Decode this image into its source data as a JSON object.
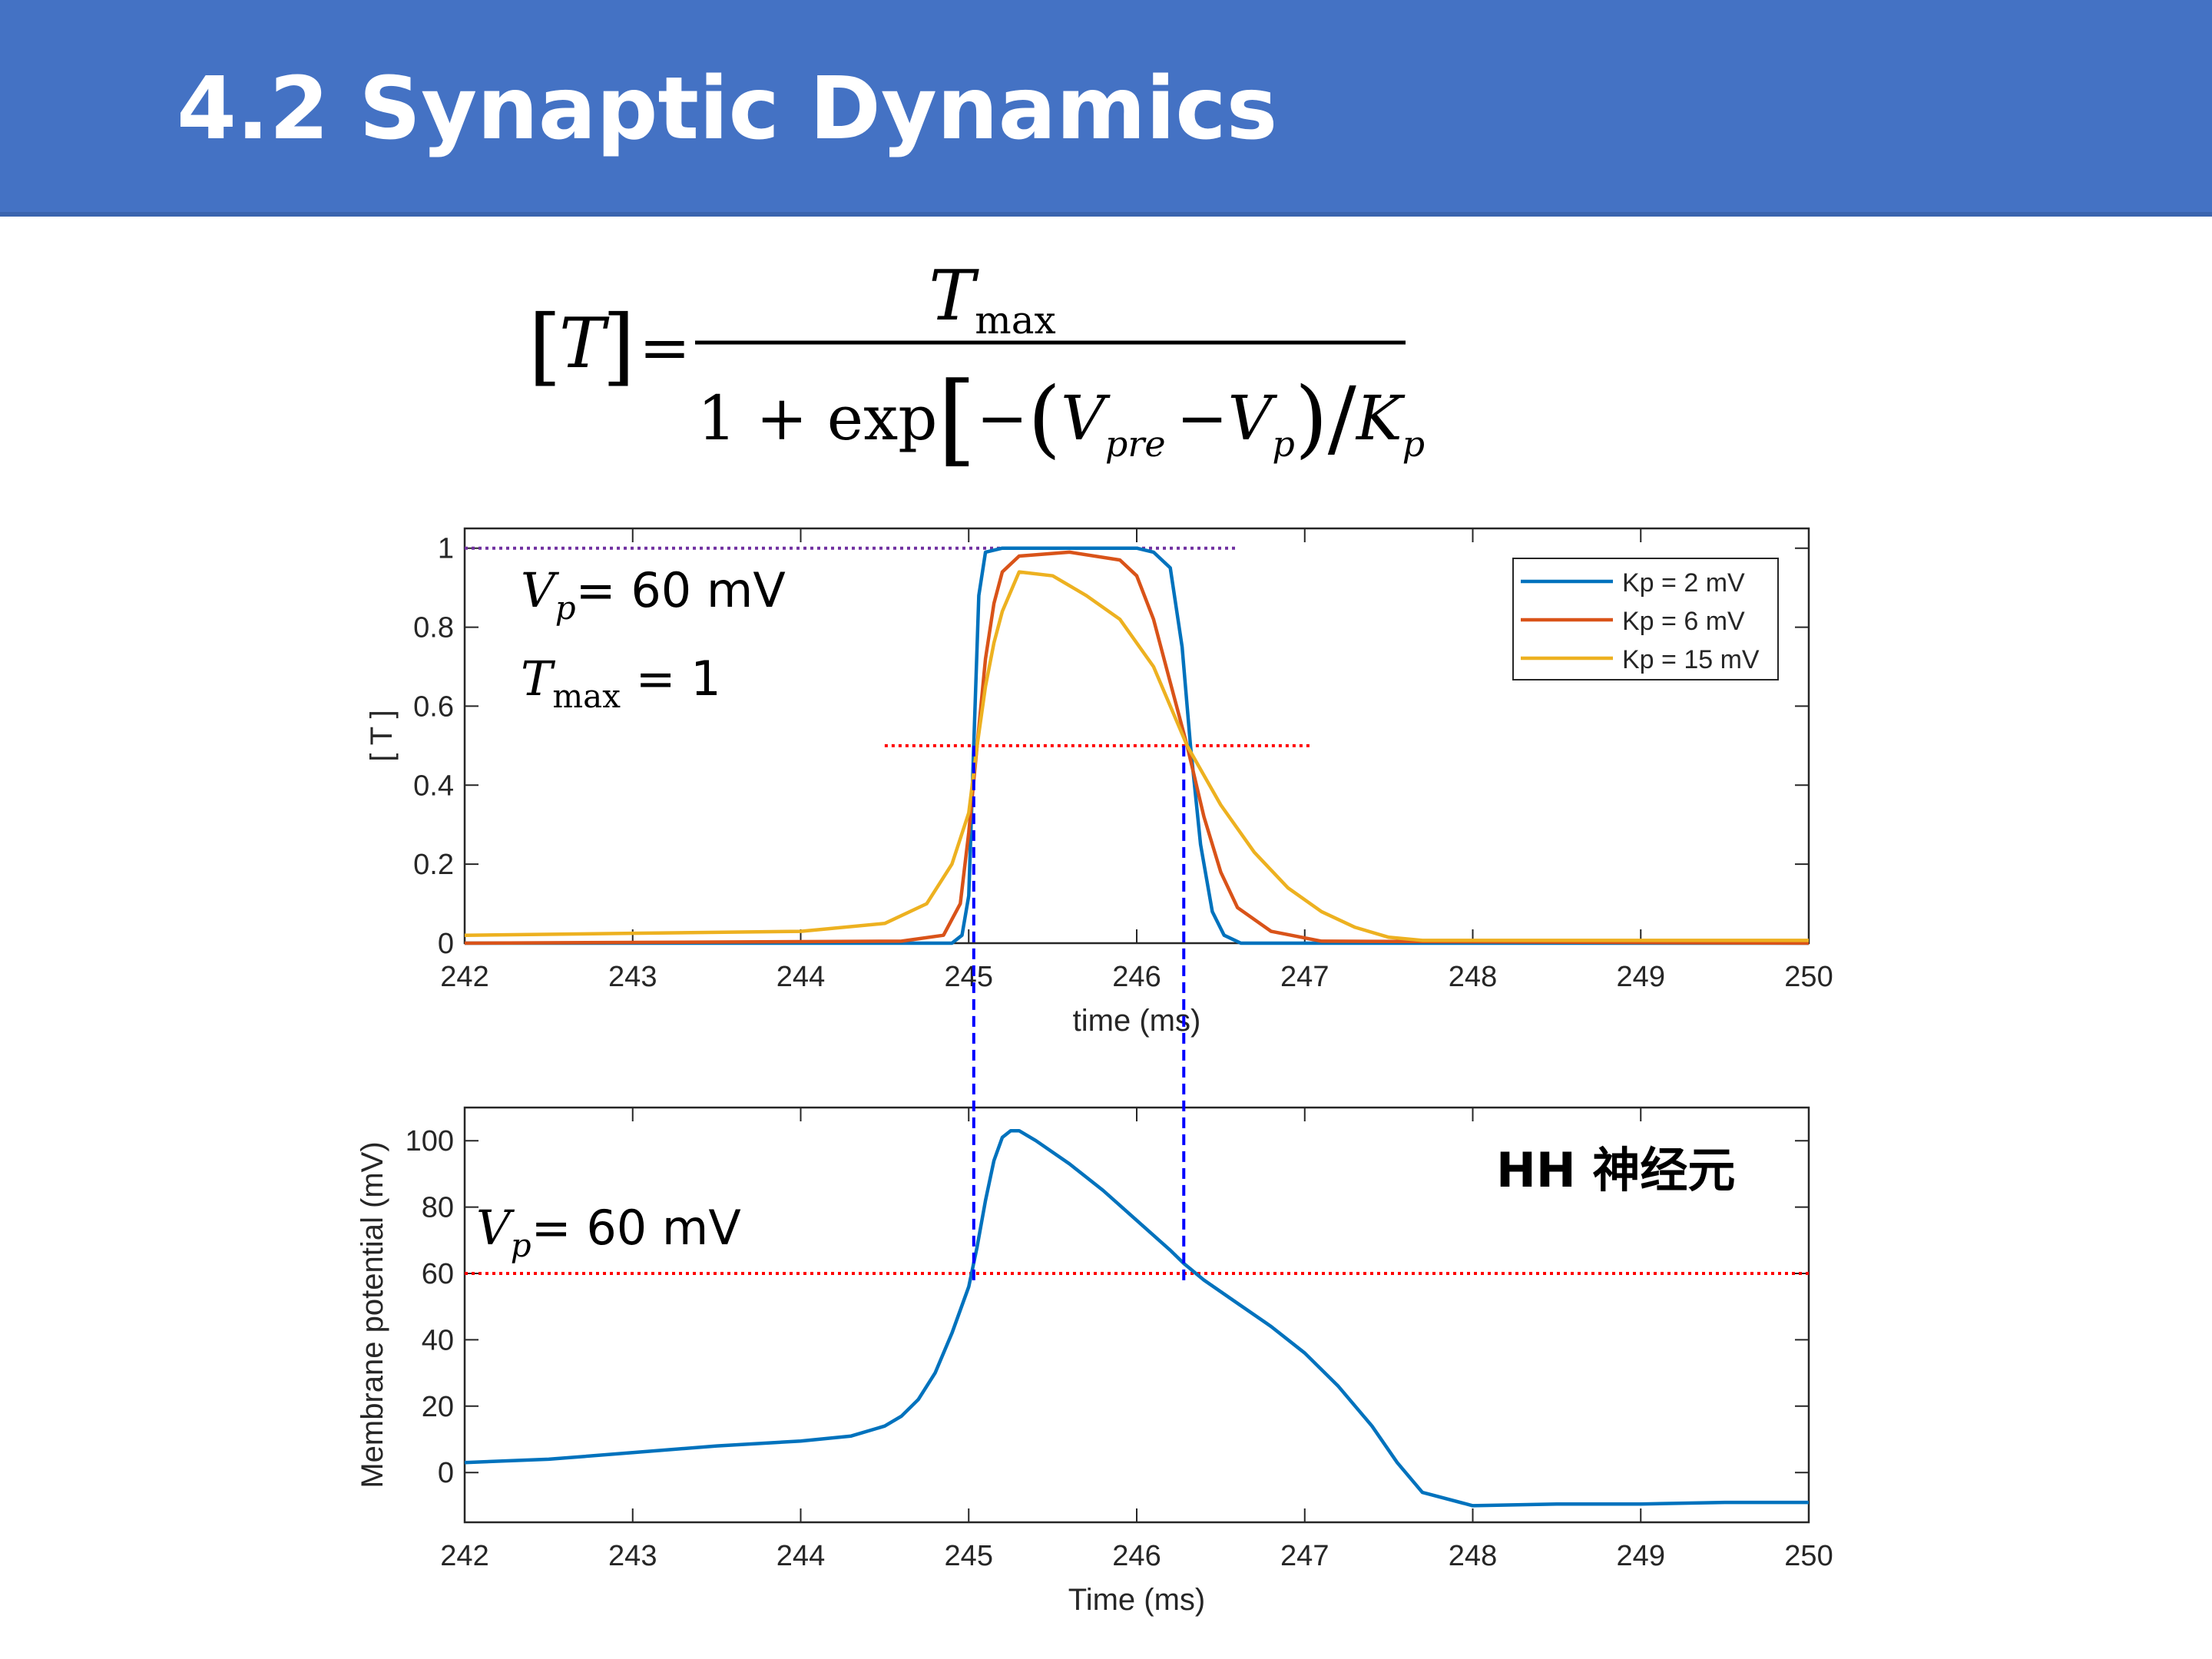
{
  "slide": {
    "title": "4.2 Synaptic Dynamics"
  },
  "formula": {
    "lhs": "T",
    "numerator_symbol": "T",
    "numerator_sub": "max",
    "denominator_lead": "1 + exp",
    "minus": "−",
    "v_pre_symbol": "V",
    "v_pre_sub": "pre",
    "v_p_symbol": "V",
    "v_p_sub": "p",
    "slash": "/",
    "k_symbol": "K",
    "k_sub": "p"
  },
  "chart_data": [
    {
      "type": "line",
      "xlabel": "time (ms)",
      "ylabel": "[ T ]",
      "xlim": [
        242,
        250
      ],
      "ylim": [
        0,
        1.05
      ],
      "xticks": [
        "242",
        "243",
        "244",
        "245",
        "246",
        "247",
        "248",
        "249",
        "250"
      ],
      "yticks": [
        "0",
        "0.2",
        "0.4",
        "0.6",
        "0.8",
        "1"
      ],
      "legend": {
        "placement": "top-right"
      },
      "annotations": [
        {
          "symbol": "V",
          "sub": "p",
          "text": "= 60 mV"
        },
        {
          "symbol": "T",
          "sub": "max",
          "text": " = 1"
        }
      ],
      "reference_lines": [
        {
          "orientation": "horizontal",
          "y": 1.0,
          "x_range": [
            242,
            246.6
          ],
          "color": "#7030a0"
        },
        {
          "orientation": "horizontal",
          "y": 0.5,
          "x_range": [
            244.5,
            247.05
          ],
          "color": "#ff0000"
        }
      ],
      "series": [
        {
          "name": "Kp = 2 mV",
          "color": "#0072bd",
          "x": [
            242,
            244.9,
            244.96,
            245.0,
            245.03,
            245.06,
            245.1,
            245.2,
            246.0,
            246.1,
            246.2,
            246.27,
            246.32,
            246.38,
            246.45,
            246.52,
            246.62,
            250
          ],
          "y": [
            0,
            0,
            0.02,
            0.12,
            0.5,
            0.88,
            0.99,
            1.0,
            1.0,
            0.99,
            0.95,
            0.75,
            0.5,
            0.25,
            0.08,
            0.02,
            0,
            0
          ]
        },
        {
          "name": "Kp = 6 mV",
          "color": "#d95319",
          "x": [
            242,
            244.6,
            244.85,
            244.95,
            245.0,
            245.05,
            245.1,
            245.15,
            245.2,
            245.3,
            245.6,
            245.9,
            246.0,
            246.1,
            246.2,
            246.3,
            246.4,
            246.5,
            246.6,
            246.8,
            247.1,
            250
          ],
          "y": [
            0,
            0.005,
            0.02,
            0.1,
            0.28,
            0.5,
            0.72,
            0.86,
            0.94,
            0.98,
            0.99,
            0.97,
            0.93,
            0.82,
            0.66,
            0.5,
            0.32,
            0.18,
            0.09,
            0.03,
            0.005,
            0
          ]
        },
        {
          "name": "Kp = 15 mV",
          "color": "#edb120",
          "x": [
            242,
            243,
            244,
            244.5,
            244.75,
            244.9,
            245.0,
            245.05,
            245.1,
            245.15,
            245.2,
            245.3,
            245.5,
            245.7,
            245.9,
            246.1,
            246.3,
            246.5,
            246.7,
            246.9,
            247.1,
            247.3,
            247.5,
            247.7,
            248,
            250
          ],
          "y": [
            0.02,
            0.025,
            0.03,
            0.05,
            0.1,
            0.2,
            0.33,
            0.5,
            0.65,
            0.76,
            0.84,
            0.94,
            0.93,
            0.88,
            0.82,
            0.7,
            0.5,
            0.35,
            0.23,
            0.14,
            0.08,
            0.04,
            0.015,
            0.007,
            0.007,
            0.007
          ]
        }
      ]
    },
    {
      "type": "line",
      "xlabel": "Time (ms)",
      "ylabel": "Membrane potential (mV)",
      "xlim": [
        242,
        250
      ],
      "ylim": [
        -15,
        110
      ],
      "xticks": [
        "242",
        "243",
        "244",
        "245",
        "246",
        "247",
        "248",
        "249",
        "250"
      ],
      "yticks": [
        "0",
        "20",
        "40",
        "60",
        "80",
        "100"
      ],
      "annotations": [
        {
          "symbol": "V",
          "sub": "p",
          "text": "= 60 mV"
        },
        {
          "text": "HH 神经元"
        }
      ],
      "reference_lines": [
        {
          "orientation": "horizontal",
          "y": 60,
          "x_range": [
            242,
            250
          ],
          "color": "#ff0000"
        },
        {
          "orientation": "vertical",
          "x": 245.03,
          "span": "between-charts",
          "color": "#0000ff"
        },
        {
          "orientation": "vertical",
          "x": 246.28,
          "span": "between-charts",
          "color": "#0000ff"
        }
      ],
      "series": [
        {
          "color": "#0072bd",
          "x": [
            242,
            242.5,
            243,
            243.5,
            244,
            244.3,
            244.5,
            244.6,
            244.7,
            244.8,
            244.9,
            245.0,
            245.05,
            245.1,
            245.15,
            245.2,
            245.25,
            245.3,
            245.4,
            245.6,
            245.8,
            246.0,
            246.2,
            246.28,
            246.4,
            246.6,
            246.8,
            247.0,
            247.2,
            247.4,
            247.55,
            247.7,
            248,
            248.5,
            249,
            249.5,
            250
          ],
          "y": [
            3,
            4,
            6,
            8,
            9.5,
            11,
            14,
            17,
            22,
            30,
            42,
            56,
            68,
            82,
            94,
            101,
            103,
            103,
            100,
            93,
            85,
            76,
            67,
            63,
            58,
            51,
            44,
            36,
            26,
            14,
            3,
            -6,
            -10,
            -9.5,
            -9.5,
            -9,
            -9
          ]
        }
      ]
    }
  ]
}
